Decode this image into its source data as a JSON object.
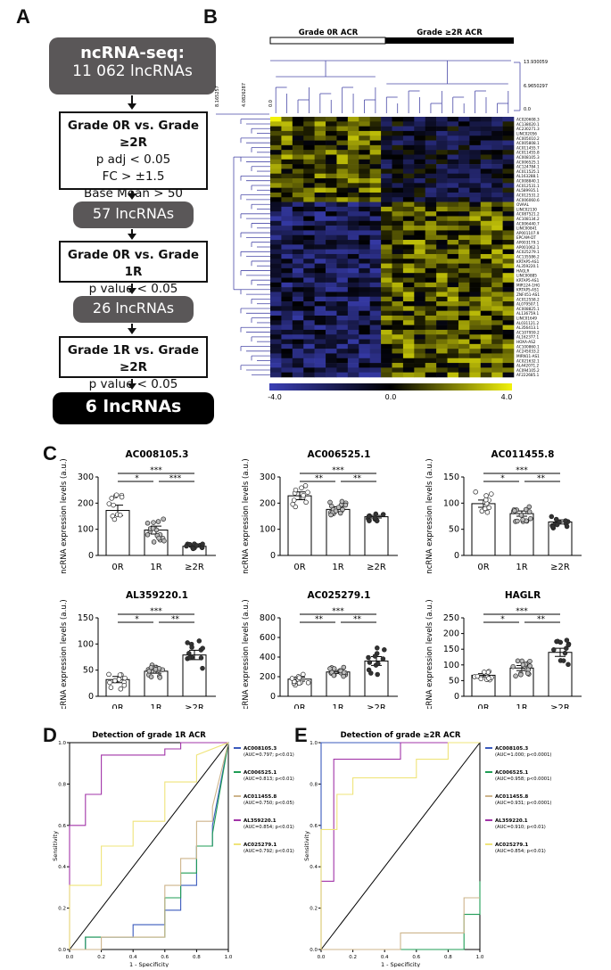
{
  "panelA": {
    "letter": "A",
    "box1_line1": "ncRNA-seq:",
    "box1_line2": "11 062 lncRNAs",
    "box2_line1": "Grade 0R vs. Grade ≥2R",
    "box2_line2": "p adj < 0.05",
    "box2_line3": "FC  > ±1.5",
    "box2_line4": "Base Mean > 50",
    "box3": "57 lncRNAs",
    "box4_line1": "Grade 0R vs. Grade 1R",
    "box4_line2": "p value < 0.05",
    "box5": "26 lncRNAs",
    "box6_line1": "Grade 1R vs. Grade ≥2R",
    "box6_line2": "p value < 0.05",
    "box7": "6 lncRNAs"
  },
  "panelB": {
    "letter": "B",
    "group1": "Grade 0R ACR",
    "group2": "Grade ≥2R ACR",
    "dendro_top": [
      "13.930059",
      "6.9650297",
      "0.0"
    ],
    "dendro_left": [
      "8.165257",
      "4.0826287",
      "0.0"
    ],
    "scale": [
      "-4.0",
      "0.0",
      "4.0"
    ],
    "genes": [
      "AC020608.3",
      "AC138020.1",
      "AC230271.3",
      "LINC02056",
      "AC005010.2",
      "AC005808.1",
      "AC011455.7",
      "AC011455.8",
      "AC008105.3",
      "AC006525.1",
      "AC124784.1",
      "AC011525.1",
      "AL163288.1",
      "AC008840.1",
      "AC012531.1",
      "AL589935.1",
      "AC012531.2",
      "AC006060.6",
      "OVAAL",
      "LINC02130",
      "AC087521.2",
      "AC108134.2",
      "AC006440.7",
      "LINC00841",
      "AP001107.9",
      "EPCAM-DT",
      "AP003179.1",
      "AP001062.1",
      "AC025279.1",
      "AC135586.2",
      "KRTAP5-AS1",
      "AL359220.1",
      "HAGLR",
      "LINC00885",
      "KRTAP5-AS1",
      "MIR124-1HG",
      "KRTAP5-AS1",
      "ZNF451-AS1",
      "AC012558.2",
      "AL079507.1",
      "AC008825.1",
      "AL136759.1",
      "LINC01649",
      "AL031121.2",
      "AL356413.1",
      "AC107959.2",
      "AL162377.1",
      "HOXA-AS2",
      "AC100860.1",
      "AC245033.2",
      "MIRN11-AS1",
      "AC021632.1",
      "AL442071.2",
      "AC094105.2",
      "AF222685.1"
    ]
  },
  "panelC": {
    "letter": "C",
    "ylabel": "ncRNA expression levels  (a.u.)",
    "groups": [
      "0R",
      "1R",
      "≥2R"
    ],
    "plots": [
      {
        "title": "AC008105.3",
        "ylim": [
          0,
          300
        ],
        "ticks": [
          0,
          100,
          200,
          300
        ],
        "means": [
          172,
          97,
          35
        ],
        "sems": [
          20,
          15,
          3
        ],
        "sig": [
          "*",
          "***",
          "***"
        ]
      },
      {
        "title": "AC006525.1",
        "ylim": [
          0,
          300
        ],
        "ticks": [
          0,
          100,
          200,
          300
        ],
        "means": [
          228,
          176,
          148
        ],
        "sems": [
          15,
          10,
          5
        ],
        "sig": [
          "**",
          "***",
          "**"
        ]
      },
      {
        "title": "AC011455.8",
        "ylim": [
          0,
          150
        ],
        "ticks": [
          0,
          50,
          100,
          150
        ],
        "means": [
          99,
          80,
          64
        ],
        "sems": [
          7,
          5,
          4
        ],
        "sig": [
          "*",
          "***",
          "**"
        ]
      },
      {
        "title": "AL359220.1",
        "ylim": [
          0,
          150
        ],
        "ticks": [
          0,
          50,
          100,
          150
        ],
        "means": [
          32,
          48,
          79
        ],
        "sems": [
          6,
          4,
          9
        ],
        "sig": [
          "*",
          "***",
          "**"
        ]
      },
      {
        "title": "AC025279.1",
        "ylim": [
          0,
          800
        ],
        "ticks": [
          0,
          200,
          400,
          600,
          800
        ],
        "means": [
          175,
          248,
          360
        ],
        "sems": [
          20,
          15,
          45
        ],
        "sig": [
          "**",
          "***",
          "**"
        ]
      },
      {
        "title": "HAGLR",
        "ylim": [
          0,
          250
        ],
        "ticks": [
          0,
          50,
          100,
          150,
          200,
          250
        ],
        "means": [
          67,
          90,
          140
        ],
        "sems": [
          5,
          8,
          13
        ],
        "sig": [
          "*",
          "***",
          "**"
        ]
      }
    ]
  },
  "panelD": {
    "letter": "D",
    "title": "Detection of grade 1R ACR",
    "xlabel": "1 - Specificity",
    "ylabel": "Sensitivity",
    "ticks": [
      "0.0",
      "0.2",
      "0.4",
      "0.6",
      "0.8",
      "1.0"
    ],
    "legend": [
      {
        "name": "AC008105.3",
        "auc": "(AUC=0.797; p<0.01)",
        "color": "#3b5bbd"
      },
      {
        "name": "AC006525.1",
        "auc": "(AUC=0.813; p<0.01)",
        "color": "#1f9d55"
      },
      {
        "name": "AC011455.8",
        "auc": "(AUC=0.750; p<0.05)",
        "color": "#cdb48b"
      },
      {
        "name": "AL359220.1",
        "auc": "(AUC=0.854; p<0.01)",
        "color": "#a234a8"
      },
      {
        "name": "AC025279.1",
        "auc": "(AUC=0.792; p<0.01)",
        "color": "#efe47a"
      }
    ]
  },
  "panelE": {
    "letter": "E",
    "title": "Detection of grade ≥2R ACR",
    "xlabel": "1 - Specificity",
    "ylabel": "Sensitivity",
    "ticks": [
      "0.0",
      "0.2",
      "0.4",
      "0.6",
      "0.8",
      "1.0"
    ],
    "legend": [
      {
        "name": "AC008105.3",
        "auc": "(AUC=1.000; p<0.0001)",
        "color": "#3b5bbd"
      },
      {
        "name": "AC006525.1",
        "auc": "(AUC=0.958; p<0.0001)",
        "color": "#1f9d55"
      },
      {
        "name": "AC011455.8",
        "auc": "(AUC=0.931; p<0.0001)",
        "color": "#cdb48b"
      },
      {
        "name": "AL359220.1",
        "auc": "(AUC=0.910; p<0.01)",
        "color": "#a234a8"
      },
      {
        "name": "AC025279.1",
        "auc": "(AUC=0.854; p<0.01)",
        "color": "#efe47a"
      }
    ]
  },
  "chart_data": [
    {
      "type": "bar",
      "title": "AC008105.3",
      "categories": [
        "0R",
        "1R",
        "≥2R"
      ],
      "values": [
        172,
        97,
        35
      ],
      "ylabel": "ncRNA expression levels  (a.u.)",
      "ylim": [
        0,
        300
      ]
    },
    {
      "type": "bar",
      "title": "AC006525.1",
      "categories": [
        "0R",
        "1R",
        "≥2R"
      ],
      "values": [
        228,
        176,
        148
      ],
      "ylabel": "ncRNA expression levels  (a.u.)",
      "ylim": [
        0,
        300
      ]
    },
    {
      "type": "bar",
      "title": "AC011455.8",
      "categories": [
        "0R",
        "1R",
        "≥2R"
      ],
      "values": [
        99,
        80,
        64
      ],
      "ylabel": "ncRNA expression levels  (a.u.)",
      "ylim": [
        0,
        150
      ]
    },
    {
      "type": "bar",
      "title": "AL359220.1",
      "categories": [
        "0R",
        "1R",
        "≥2R"
      ],
      "values": [
        32,
        48,
        79
      ],
      "ylabel": "ncRNA expression levels  (a.u.)",
      "ylim": [
        0,
        150
      ]
    },
    {
      "type": "bar",
      "title": "AC025279.1",
      "categories": [
        "0R",
        "1R",
        "≥2R"
      ],
      "values": [
        175,
        248,
        360
      ],
      "ylabel": "ncRNA expression levels  (a.u.)",
      "ylim": [
        0,
        800
      ]
    },
    {
      "type": "bar",
      "title": "HAGLR",
      "categories": [
        "0R",
        "1R",
        "≥2R"
      ],
      "values": [
        67,
        90,
        140
      ],
      "ylabel": "ncRNA expression levels  (a.u.)",
      "ylim": [
        0,
        250
      ]
    },
    {
      "type": "line",
      "title": "Detection of grade 1R ACR",
      "xlabel": "1 - Specificity",
      "ylabel": "Sensitivity",
      "xlim": [
        0,
        1
      ],
      "ylim": [
        0,
        1
      ],
      "series": [
        {
          "name": "AC008105.3",
          "x": [
            0,
            0.1,
            0.1,
            0.4,
            0.4,
            0.6,
            0.6,
            0.7,
            0.7,
            0.8,
            0.8,
            0.9,
            0.9,
            1
          ],
          "y": [
            0,
            0,
            0.06,
            0.06,
            0.12,
            0.12,
            0.19,
            0.19,
            0.31,
            0.31,
            0.5,
            0.5,
            0.6,
            1
          ]
        },
        {
          "name": "AC006525.1",
          "x": [
            0,
            0.1,
            0.1,
            0.2,
            0.2,
            0.6,
            0.6,
            0.7,
            0.7,
            0.8,
            0.8,
            0.9,
            0.9,
            1
          ],
          "y": [
            0,
            0,
            0.06,
            0.06,
            0.06,
            0.06,
            0.25,
            0.25,
            0.37,
            0.37,
            0.5,
            0.5,
            0.56,
            1
          ]
        },
        {
          "name": "AC011455.8",
          "x": [
            0,
            0.2,
            0.2,
            0.6,
            0.6,
            0.7,
            0.7,
            0.8,
            0.8,
            0.9,
            0.9,
            1
          ],
          "y": [
            0,
            0,
            0.06,
            0.06,
            0.31,
            0.31,
            0.44,
            0.44,
            0.62,
            0.62,
            0.69,
            1
          ]
        },
        {
          "name": "AL359220.1",
          "x": [
            0,
            0,
            0.1,
            0.1,
            0.2,
            0.2,
            0.6,
            0.6,
            0.7,
            0.7,
            1
          ],
          "y": [
            0,
            0.6,
            0.6,
            0.75,
            0.75,
            0.94,
            0.94,
            0.97,
            0.97,
            1,
            1
          ]
        },
        {
          "name": "AC025279.1",
          "x": [
            0,
            0,
            0.2,
            0.2,
            0.4,
            0.4,
            0.6,
            0.6,
            0.8,
            0.8,
            1
          ],
          "y": [
            0,
            0.31,
            0.31,
            0.5,
            0.5,
            0.62,
            0.62,
            0.81,
            0.81,
            0.94,
            1
          ]
        }
      ]
    },
    {
      "type": "line",
      "title": "Detection of grade ≥2R ACR",
      "xlabel": "1 - Specificity",
      "ylabel": "Sensitivity",
      "xlim": [
        0,
        1
      ],
      "ylim": [
        0,
        1
      ],
      "series": [
        {
          "name": "AC008105.3",
          "x": [
            0,
            0,
            1
          ],
          "y": [
            0,
            1,
            1
          ]
        },
        {
          "name": "AC006525.1",
          "x": [
            0,
            0.9,
            0.9,
            1,
            1
          ],
          "y": [
            0,
            0,
            0.17,
            0.17,
            0.33
          ]
        },
        {
          "name": "AC011455.8",
          "x": [
            0,
            0.5,
            0.5,
            0.9,
            0.9,
            1
          ],
          "y": [
            0,
            0,
            0.08,
            0.08,
            0.25,
            0.25
          ]
        },
        {
          "name": "AL359220.1",
          "x": [
            0,
            0,
            0.08,
            0.08,
            0.5,
            0.5,
            1
          ],
          "y": [
            0,
            0.33,
            0.33,
            0.92,
            0.92,
            1,
            1
          ]
        },
        {
          "name": "AC025279.1",
          "x": [
            0,
            0,
            0.1,
            0.1,
            0.2,
            0.2,
            0.6,
            0.6,
            0.8,
            0.8,
            1
          ],
          "y": [
            0,
            0.58,
            0.58,
            0.75,
            0.75,
            0.83,
            0.83,
            0.92,
            0.92,
            1,
            1
          ]
        }
      ]
    }
  ]
}
